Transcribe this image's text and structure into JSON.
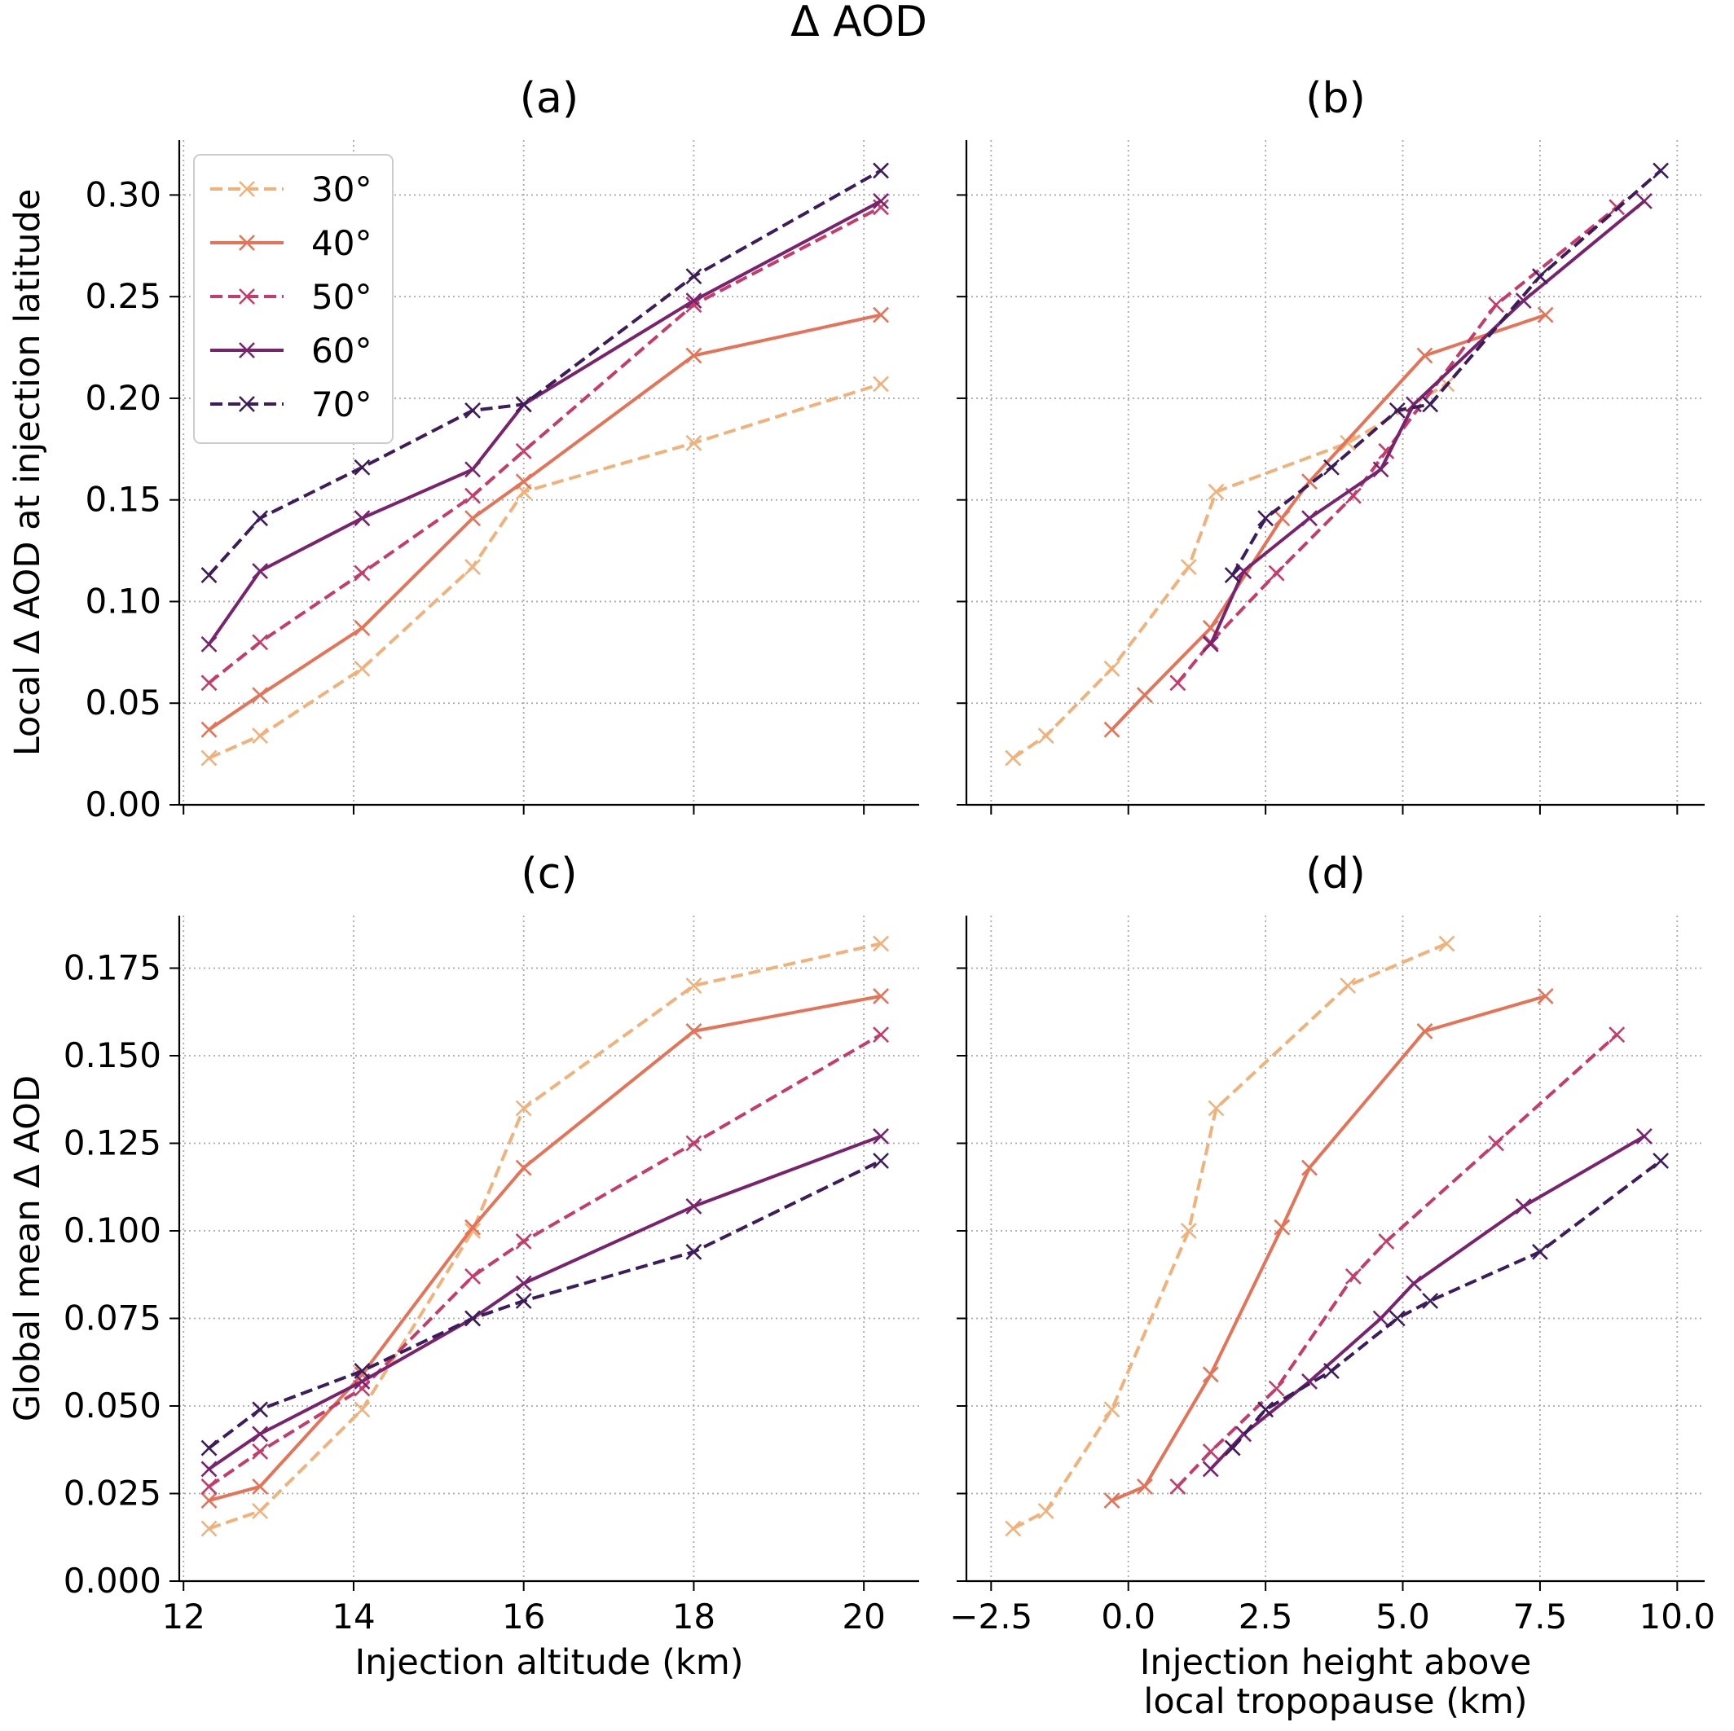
{
  "suptitle": "Δ AOD",
  "legend": {
    "location": "upper left of panel (a)",
    "entries": [
      {
        "label": "30°",
        "color": "#f0b27a",
        "dashed": true
      },
      {
        "label": "40°",
        "color": "#e57358",
        "dashed": false
      },
      {
        "label": "50°",
        "color": "#c53b6a",
        "dashed": true
      },
      {
        "label": "60°",
        "color": "#79236f",
        "dashed": false
      },
      {
        "label": "70°",
        "color": "#3d1c5c",
        "dashed": true
      }
    ]
  },
  "chart_data": [
    {
      "type": "line",
      "panel": "(a)",
      "title": "(a)",
      "xlabel": "",
      "ylabel": "Local Δ AOD at injection latitude",
      "xlim": [
        11.95,
        20.65
      ],
      "ylim": [
        0,
        0.327
      ],
      "xticks": [
        12,
        14,
        16,
        18,
        20
      ],
      "xtick_labels": [
        "",
        "",
        "",
        "",
        ""
      ],
      "yticks": [
        0.0,
        0.05,
        0.1,
        0.15,
        0.2,
        0.25,
        0.3
      ],
      "ytick_labels": [
        "0.00",
        "0.05",
        "0.10",
        "0.15",
        "0.20",
        "0.25",
        "0.30"
      ],
      "grid": true,
      "series": [
        {
          "name": "30°",
          "x": [
            12.3,
            12.9,
            14.1,
            15.4,
            16.0,
            18.0,
            20.2
          ],
          "y": [
            0.023,
            0.034,
            0.067,
            0.117,
            0.154,
            0.178,
            0.207
          ]
        },
        {
          "name": "40°",
          "x": [
            12.3,
            12.9,
            14.1,
            15.4,
            16.0,
            18.0,
            20.2
          ],
          "y": [
            0.037,
            0.054,
            0.087,
            0.141,
            0.159,
            0.221,
            0.241
          ]
        },
        {
          "name": "50°",
          "x": [
            12.3,
            12.9,
            14.1,
            15.4,
            16.0,
            18.0,
            20.2
          ],
          "y": [
            0.06,
            0.08,
            0.114,
            0.152,
            0.174,
            0.246,
            0.294
          ]
        },
        {
          "name": "60°",
          "x": [
            12.3,
            12.9,
            14.1,
            15.4,
            16.0,
            18.0,
            20.2
          ],
          "y": [
            0.079,
            0.115,
            0.141,
            0.165,
            0.197,
            0.248,
            0.297
          ]
        },
        {
          "name": "70°",
          "x": [
            12.3,
            12.9,
            14.1,
            15.4,
            16.0,
            18.0,
            20.2
          ],
          "y": [
            0.113,
            0.141,
            0.166,
            0.194,
            0.197,
            0.26,
            0.312
          ]
        }
      ]
    },
    {
      "type": "line",
      "panel": "(b)",
      "title": "(b)",
      "xlabel": "",
      "ylabel": "",
      "xlim": [
        -2.95,
        10.5
      ],
      "ylim": [
        0,
        0.327
      ],
      "xticks": [
        -2.5,
        0.0,
        2.5,
        5.0,
        7.5,
        10.0
      ],
      "xtick_labels": [
        "",
        "",
        "",
        "",
        "",
        ""
      ],
      "yticks": [
        0.0,
        0.05,
        0.1,
        0.15,
        0.2,
        0.25,
        0.3
      ],
      "ytick_labels": [
        "",
        "",
        "",
        "",
        "",
        "",
        ""
      ],
      "grid": true,
      "series": [
        {
          "name": "30°",
          "x": [
            -2.1,
            -1.5,
            -0.3,
            1.1,
            1.6,
            4.0,
            5.8
          ],
          "y": [
            0.023,
            0.034,
            0.067,
            0.117,
            0.154,
            0.178,
            0.207
          ]
        },
        {
          "name": "40°",
          "x": [
            -0.3,
            0.3,
            1.5,
            2.8,
            3.3,
            5.4,
            7.6
          ],
          "y": [
            0.037,
            0.054,
            0.087,
            0.141,
            0.159,
            0.221,
            0.241
          ]
        },
        {
          "name": "50°",
          "x": [
            0.9,
            1.5,
            2.7,
            4.1,
            4.7,
            6.7,
            8.9
          ],
          "y": [
            0.06,
            0.08,
            0.114,
            0.152,
            0.174,
            0.246,
            0.294
          ]
        },
        {
          "name": "60°",
          "x": [
            1.5,
            2.1,
            3.3,
            4.6,
            5.2,
            7.2,
            9.4
          ],
          "y": [
            0.079,
            0.115,
            0.141,
            0.165,
            0.197,
            0.248,
            0.297
          ]
        },
        {
          "name": "70°",
          "x": [
            1.9,
            2.5,
            3.7,
            4.9,
            5.5,
            7.5,
            9.7
          ],
          "y": [
            0.113,
            0.141,
            0.166,
            0.194,
            0.197,
            0.26,
            0.312
          ]
        }
      ]
    },
    {
      "type": "line",
      "panel": "(c)",
      "title": "(c)",
      "xlabel": "Injection altitude (km)",
      "ylabel": "Global mean Δ AOD",
      "xlim": [
        11.95,
        20.65
      ],
      "ylim": [
        0,
        0.19
      ],
      "xticks": [
        12,
        14,
        16,
        18,
        20
      ],
      "xtick_labels": [
        "12",
        "14",
        "16",
        "18",
        "20"
      ],
      "yticks": [
        0.0,
        0.025,
        0.05,
        0.075,
        0.1,
        0.125,
        0.15,
        0.175
      ],
      "ytick_labels": [
        "0.000",
        "0.025",
        "0.050",
        "0.075",
        "0.100",
        "0.125",
        "0.150",
        "0.175"
      ],
      "grid": true,
      "series": [
        {
          "name": "30°",
          "x": [
            12.3,
            12.9,
            14.1,
            15.4,
            16.0,
            18.0,
            20.2
          ],
          "y": [
            0.015,
            0.02,
            0.049,
            0.1,
            0.135,
            0.17,
            0.182
          ]
        },
        {
          "name": "40°",
          "x": [
            12.3,
            12.9,
            14.1,
            15.4,
            16.0,
            18.0,
            20.2
          ],
          "y": [
            0.023,
            0.027,
            0.059,
            0.101,
            0.118,
            0.157,
            0.167
          ]
        },
        {
          "name": "50°",
          "x": [
            12.3,
            12.9,
            14.1,
            15.4,
            16.0,
            18.0,
            20.2
          ],
          "y": [
            0.027,
            0.037,
            0.055,
            0.087,
            0.097,
            0.125,
            0.156
          ]
        },
        {
          "name": "60°",
          "x": [
            12.3,
            12.9,
            14.1,
            15.4,
            16.0,
            18.0,
            20.2
          ],
          "y": [
            0.032,
            0.042,
            0.057,
            0.075,
            0.085,
            0.107,
            0.127
          ]
        },
        {
          "name": "70°",
          "x": [
            12.3,
            12.9,
            14.1,
            15.4,
            16.0,
            18.0,
            20.2
          ],
          "y": [
            0.038,
            0.049,
            0.06,
            0.075,
            0.08,
            0.094,
            0.12
          ]
        }
      ]
    },
    {
      "type": "line",
      "panel": "(d)",
      "title": "(d)",
      "xlabel": "Injection height above\nlocal tropopause (km)",
      "ylabel": "",
      "xlim": [
        -2.95,
        10.5
      ],
      "ylim": [
        0,
        0.19
      ],
      "xticks": [
        -2.5,
        0.0,
        2.5,
        5.0,
        7.5,
        10.0
      ],
      "xtick_labels": [
        "−2.5",
        "0.0",
        "2.5",
        "5.0",
        "7.5",
        "10.0"
      ],
      "yticks": [
        0.0,
        0.025,
        0.05,
        0.075,
        0.1,
        0.125,
        0.15,
        0.175
      ],
      "ytick_labels": [
        "",
        "",
        "",
        "",
        "",
        "",
        "",
        ""
      ],
      "grid": true,
      "series": [
        {
          "name": "30°",
          "x": [
            -2.1,
            -1.5,
            -0.3,
            1.1,
            1.6,
            4.0,
            5.8
          ],
          "y": [
            0.015,
            0.02,
            0.049,
            0.1,
            0.135,
            0.17,
            0.182
          ]
        },
        {
          "name": "40°",
          "x": [
            -0.3,
            0.3,
            1.5,
            2.8,
            3.3,
            5.4,
            7.6
          ],
          "y": [
            0.023,
            0.027,
            0.059,
            0.101,
            0.118,
            0.157,
            0.167
          ]
        },
        {
          "name": "50°",
          "x": [
            0.9,
            1.5,
            2.7,
            4.1,
            4.7,
            6.7,
            8.9
          ],
          "y": [
            0.027,
            0.037,
            0.055,
            0.087,
            0.097,
            0.125,
            0.156
          ]
        },
        {
          "name": "60°",
          "x": [
            1.5,
            2.1,
            3.3,
            4.6,
            5.2,
            7.2,
            9.4
          ],
          "y": [
            0.032,
            0.042,
            0.057,
            0.075,
            0.085,
            0.107,
            0.127
          ]
        },
        {
          "name": "70°",
          "x": [
            1.9,
            2.5,
            3.7,
            4.9,
            5.5,
            7.5,
            9.7
          ],
          "y": [
            0.038,
            0.049,
            0.06,
            0.075,
            0.08,
            0.094,
            0.12
          ]
        }
      ]
    }
  ]
}
